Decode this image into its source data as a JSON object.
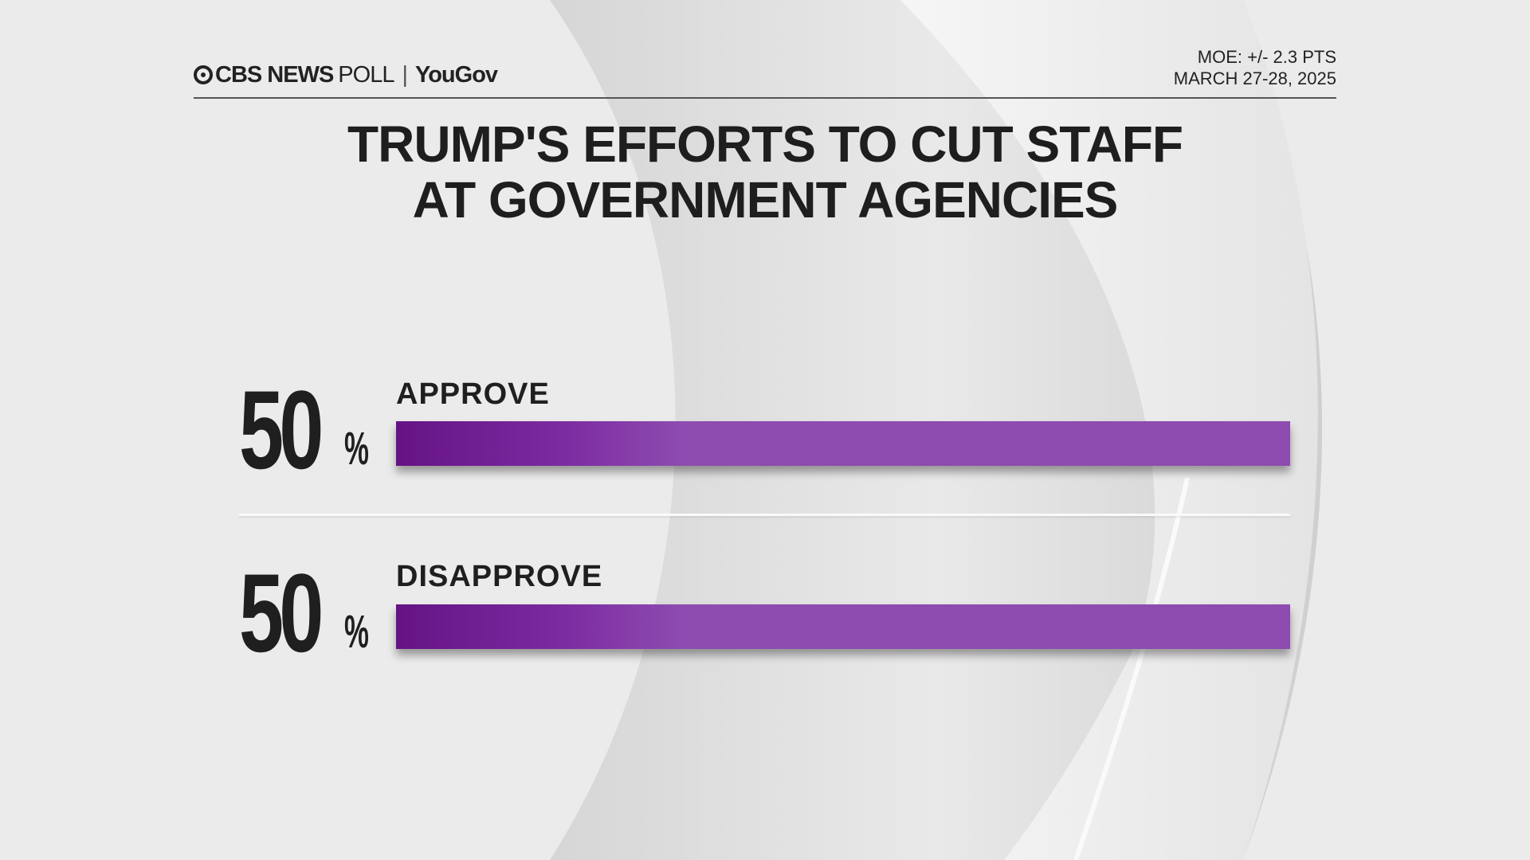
{
  "header": {
    "brand": "CBS NEWS",
    "brand_suffix": "POLL",
    "separator": "|",
    "partner": "YouGov",
    "moe": "MOE: +/- 2.3 PTS",
    "dates": "MARCH 27-28, 2025"
  },
  "chart_data": {
    "type": "bar",
    "orientation": "horizontal",
    "title": "TRUMP'S EFFORTS TO CUT STAFF AT GOVERNMENT AGENCIES",
    "title_lines": [
      "TRUMP'S EFFORTS TO CUT STAFF",
      "AT GOVERNMENT AGENCIES"
    ],
    "categories": [
      "APPROVE",
      "DISAPPROVE"
    ],
    "values": [
      50,
      50
    ],
    "unit": "%",
    "bar_color": "#8e4bb0",
    "bar_gradient_start": "#651384"
  }
}
